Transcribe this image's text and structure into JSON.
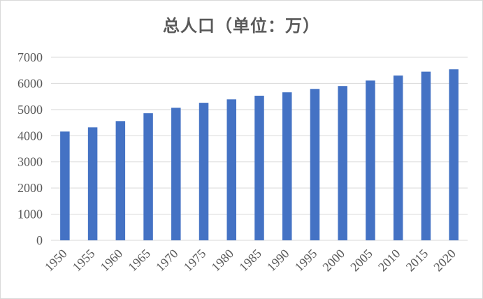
{
  "chart_data": {
    "type": "bar",
    "title": "总人口（单位：万）",
    "xlabel": "",
    "ylabel": "",
    "categories": [
      "1950",
      "1955",
      "1960",
      "1965",
      "1970",
      "1975",
      "1980",
      "1985",
      "1990",
      "1995",
      "2000",
      "2005",
      "2010",
      "2015",
      "2020"
    ],
    "values": [
      4160,
      4320,
      4560,
      4860,
      5070,
      5260,
      5390,
      5530,
      5660,
      5790,
      5900,
      6110,
      6300,
      6450,
      6540
    ],
    "ylim": [
      0,
      7000
    ],
    "yticks": [
      0,
      1000,
      2000,
      3000,
      4000,
      5000,
      6000,
      7000
    ],
    "grid": true,
    "legend": "none",
    "bar_color": "#4472c4",
    "grid_color": "#d9d9d9",
    "text_color": "#595959"
  }
}
